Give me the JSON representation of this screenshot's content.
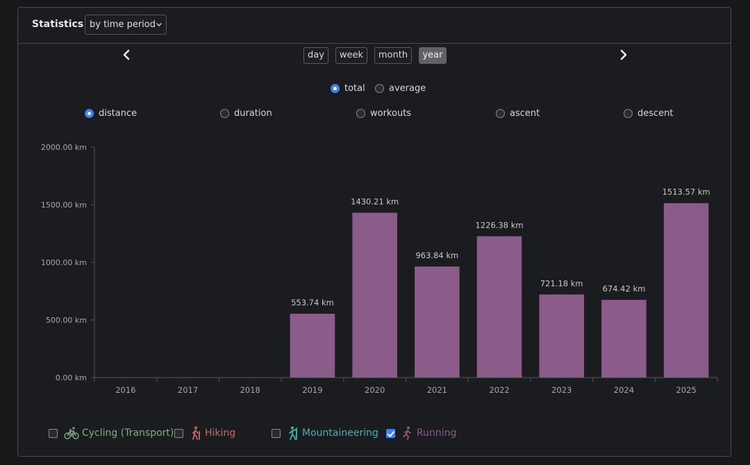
{
  "header": {
    "title": "Statistics",
    "mode_select": "by time period"
  },
  "periods": [
    "day",
    "week",
    "month",
    "year"
  ],
  "selected_period": "year",
  "aggregate": {
    "options": [
      "total",
      "average"
    ],
    "selected": "total"
  },
  "metrics": {
    "options": [
      "distance",
      "duration",
      "workouts",
      "ascent",
      "descent"
    ],
    "selected": "distance"
  },
  "legend": [
    {
      "label": "Cycling (Transport)",
      "checked": false,
      "color": "#7bb07d",
      "icon": "bicycle-icon"
    },
    {
      "label": "Hiking",
      "checked": false,
      "color": "#c96a63",
      "icon": "hiker-icon"
    },
    {
      "label": "Mountaineering",
      "checked": false,
      "color": "#43b3b0",
      "icon": "mountaineer-icon"
    },
    {
      "label": "Running",
      "checked": true,
      "color": "#8b5c8a",
      "icon": "runner-icon"
    }
  ],
  "chart_data": {
    "type": "bar",
    "title": "",
    "xlabel": "",
    "ylabel": "",
    "categories": [
      "2016",
      "2017",
      "2018",
      "2019",
      "2020",
      "2021",
      "2022",
      "2023",
      "2024",
      "2025"
    ],
    "series": [
      {
        "name": "Running",
        "color": "#8b5c89",
        "values": [
          null,
          null,
          null,
          553.74,
          1430.21,
          963.84,
          1226.38,
          721.18,
          674.42,
          1513.57
        ],
        "labels": [
          "",
          "",
          "",
          "553.74 km",
          "1430.21 km",
          "963.84 km",
          "1226.38 km",
          "721.18 km",
          "674.42 km",
          "1513.57 km"
        ]
      }
    ],
    "ylim": [
      0,
      2000
    ],
    "yticks": [
      0,
      500,
      1000,
      1500,
      2000
    ],
    "ytick_labels": [
      "0.00 km",
      "500.00 km",
      "1000.00 km",
      "1500.00 km",
      "2000.00 km"
    ],
    "grid": false
  }
}
